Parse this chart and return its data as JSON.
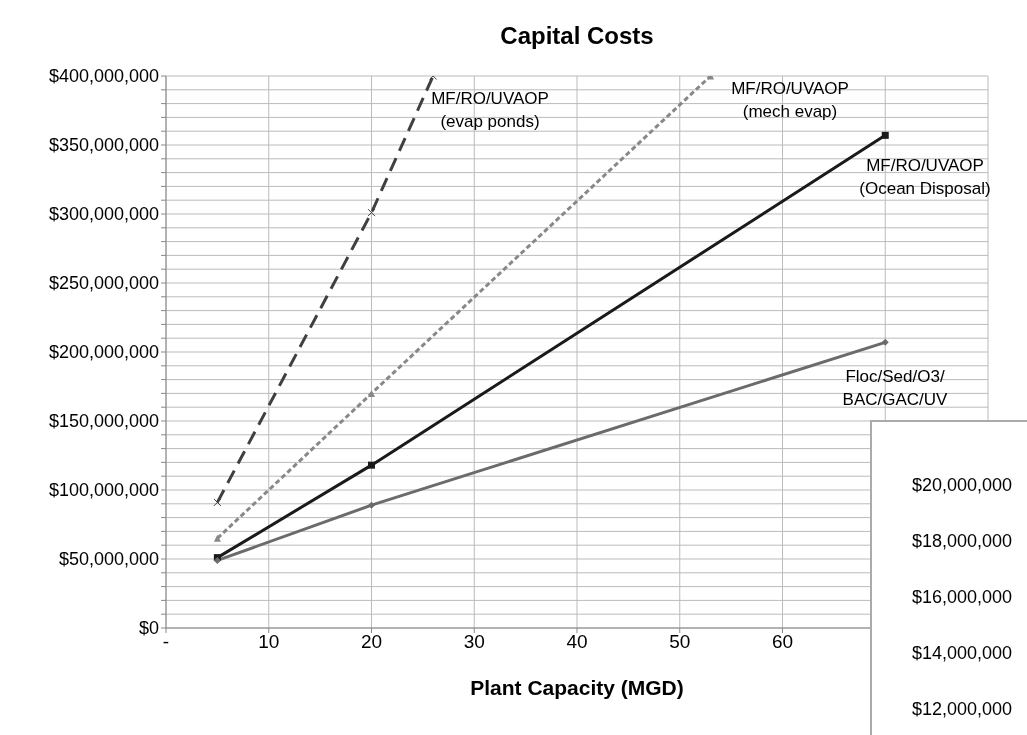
{
  "chart_data": [
    {
      "type": "line",
      "title": "Capital Costs",
      "xlabel": "Plant Capacity (MGD)",
      "xlim": [
        0,
        80
      ],
      "ylim": [
        0,
        400000000
      ],
      "xticks": [
        {
          "value": 0,
          "label": "-"
        },
        10,
        20,
        30,
        40,
        50,
        60,
        {
          "value": 70,
          "label": null
        },
        {
          "value": 80,
          "label": null
        }
      ],
      "yticks": [
        {
          "value": 0,
          "label": "$0"
        },
        {
          "value": 10000000,
          "label": null
        },
        {
          "value": 20000000,
          "label": null
        },
        {
          "value": 30000000,
          "label": null
        },
        {
          "value": 40000000,
          "label": null
        },
        {
          "value": 50000000,
          "label": "$50,000,000"
        },
        {
          "value": 60000000,
          "label": null
        },
        {
          "value": 70000000,
          "label": null
        },
        {
          "value": 80000000,
          "label": null
        },
        {
          "value": 90000000,
          "label": null
        },
        {
          "value": 100000000,
          "label": "$100,000,000"
        },
        {
          "value": 110000000,
          "label": null
        },
        {
          "value": 120000000,
          "label": null
        },
        {
          "value": 130000000,
          "label": null
        },
        {
          "value": 140000000,
          "label": null
        },
        {
          "value": 150000000,
          "label": "$150,000,000"
        },
        {
          "value": 160000000,
          "label": null
        },
        {
          "value": 170000000,
          "label": null
        },
        {
          "value": 180000000,
          "label": null
        },
        {
          "value": 190000000,
          "label": null
        },
        {
          "value": 200000000,
          "label": "$200,000,000"
        },
        {
          "value": 210000000,
          "label": null
        },
        {
          "value": 220000000,
          "label": null
        },
        {
          "value": 230000000,
          "label": null
        },
        {
          "value": 240000000,
          "label": null
        },
        {
          "value": 250000000,
          "label": "$250,000,000"
        },
        {
          "value": 260000000,
          "label": null
        },
        {
          "value": 270000000,
          "label": null
        },
        {
          "value": 280000000,
          "label": null
        },
        {
          "value": 290000000,
          "label": null
        },
        {
          "value": 300000000,
          "label": "$300,000,000"
        },
        {
          "value": 310000000,
          "label": null
        },
        {
          "value": 320000000,
          "label": null
        },
        {
          "value": 330000000,
          "label": null
        },
        {
          "value": 340000000,
          "label": null
        },
        {
          "value": 350000000,
          "label": "$350,000,000"
        },
        {
          "value": 360000000,
          "label": null
        },
        {
          "value": 370000000,
          "label": null
        },
        {
          "value": 380000000,
          "label": null
        },
        {
          "value": 390000000,
          "label": null
        },
        {
          "value": 400000000,
          "label": "$400,000,000"
        }
      ],
      "grid": true,
      "series": [
        {
          "color": "#404040",
          "line_style": "dashed",
          "marker": "cross",
          "x": [
            5,
            20,
            26
          ],
          "values": [
            91000000,
            301000000,
            400000000
          ]
        },
        {
          "color": "#888888",
          "line_style": "dotted",
          "marker": "triangle",
          "x": [
            5,
            20,
            53
          ],
          "values": [
            65000000,
            170000000,
            400000000
          ]
        },
        {
          "color": "#1a1a1a",
          "line_style": "solid",
          "marker": "square",
          "x": [
            5,
            20,
            70
          ],
          "values": [
            51000000,
            118000000,
            357000000
          ]
        },
        {
          "color": "#6b6b6b",
          "line_style": "solid",
          "marker": "diamond",
          "x": [
            5,
            20,
            70
          ],
          "values": [
            49000000,
            89000000,
            207000000
          ]
        }
      ],
      "annotations": [
        "MF/RO/UVAOP\n(evap ponds)",
        "MF/RO/UVAOP\n(mech evap)",
        "MF/RO/UVAOP\n(Ocean Disposal)",
        "Floc/Sed/O3/\nBAC/GAC/UV"
      ]
    },
    {
      "type": "other",
      "annotations": [
        "$20,000,000",
        "$18,000,000",
        "$16,000,000",
        "$14,000,000",
        "$12,000,000"
      ]
    }
  ]
}
